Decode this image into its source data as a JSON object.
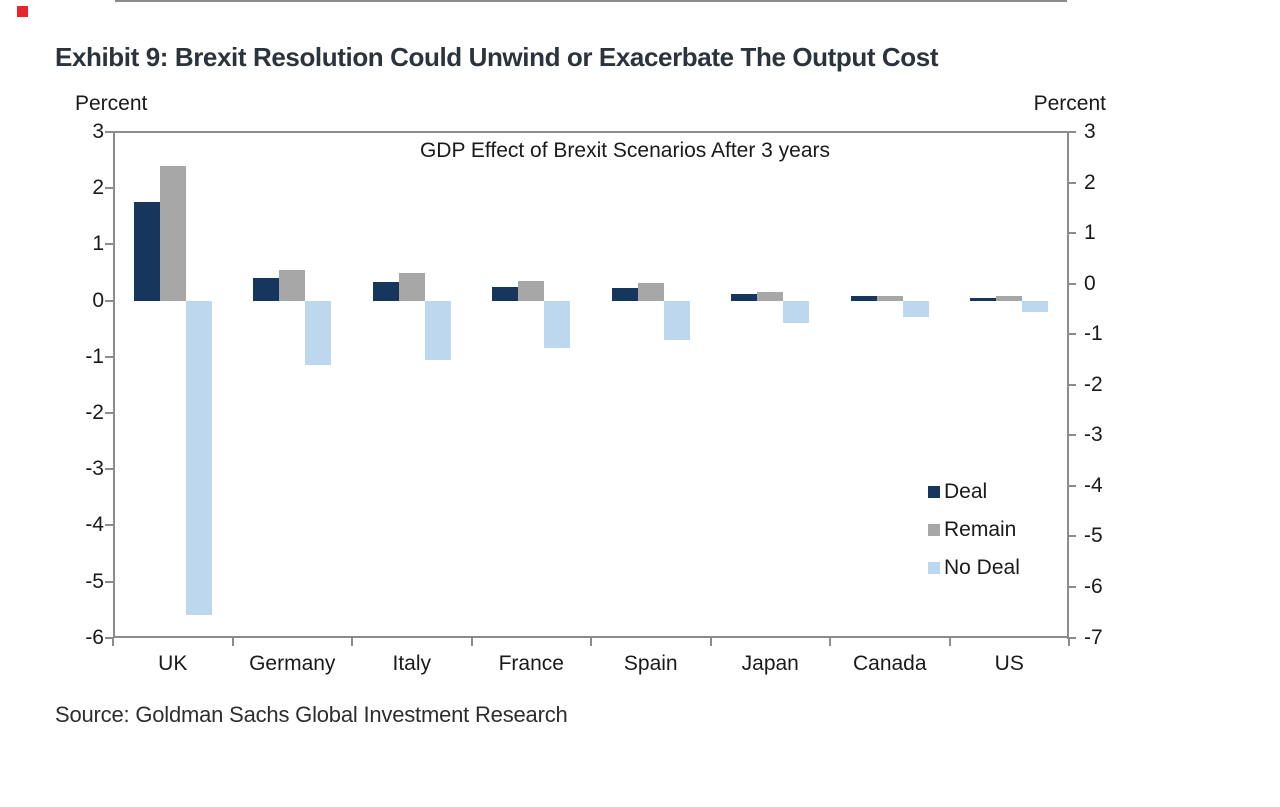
{
  "page": {
    "background": "#ffffff"
  },
  "decor": {
    "red_marker_color": "#e8252a"
  },
  "header": {
    "exhibit_title": "Exhibit 9: Brexit Resolution Could Unwind or Exacerbate The Output Cost"
  },
  "chart_data": {
    "type": "bar",
    "title": "GDP Effect of Brexit Scenarios After 3 years",
    "left_axis_label": "Percent",
    "right_axis_label": "Percent",
    "categories": [
      "UK",
      "Germany",
      "Italy",
      "France",
      "Spain",
      "Japan",
      "Canada",
      "US"
    ],
    "series": [
      {
        "name": "Deal",
        "color": "#17365D",
        "values": [
          1.75,
          0.4,
          0.33,
          0.25,
          0.22,
          0.12,
          0.08,
          0.05
        ]
      },
      {
        "name": "Remain",
        "color": "#A7A7A7",
        "values": [
          2.4,
          0.55,
          0.5,
          0.35,
          0.32,
          0.15,
          0.09,
          0.08
        ]
      },
      {
        "name": "No Deal",
        "color": "#BDD7EE",
        "values": [
          -5.6,
          -1.15,
          -1.05,
          -0.85,
          -0.7,
          -0.4,
          -0.3,
          -0.2
        ]
      }
    ],
    "left_axis_ticks": [
      3,
      2,
      1,
      0,
      -1,
      -2,
      -3,
      -4,
      -5,
      -6
    ],
    "right_axis_ticks": [
      3,
      2,
      1,
      0,
      -1,
      -2,
      -3,
      -4,
      -5,
      -6,
      -7
    ],
    "left_ylim": [
      -6,
      3
    ],
    "right_ylim": [
      -7,
      3
    ],
    "grid": "zero-line-only",
    "legend_position": "inside-right",
    "axis_color": "#8c8c8c",
    "text_color": "#1a1a1a"
  },
  "footer": {
    "source": "Source: Goldman Sachs Global Investment Research"
  }
}
